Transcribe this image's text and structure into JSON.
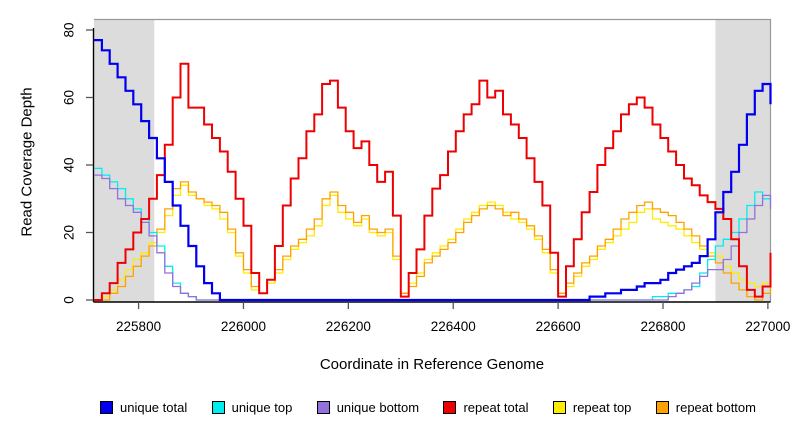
{
  "figure": {
    "x_title": "Coordinate in Reference Genome",
    "y_title": "Read Coverage Depth",
    "background_color": "#ffffff",
    "shaded_region_color": "#dcdcdc",
    "box_color": "#999999",
    "axis_color": "#000000",
    "tick_color": "#555555"
  },
  "legend": {
    "items": [
      {
        "label": "unique total",
        "color": "#0000ee"
      },
      {
        "label": "unique top",
        "color": "#00eeee"
      },
      {
        "label": "unique bottom",
        "color": "#9370db"
      },
      {
        "label": "repeat total",
        "color": "#ee0000"
      },
      {
        "label": "repeat top",
        "color": "#ffec00"
      },
      {
        "label": "repeat bottom",
        "color": "#ffa200"
      }
    ]
  },
  "chart_data": {
    "type": "line",
    "title": "",
    "xlabel": "Coordinate in Reference Genome",
    "ylabel": "Read Coverage Depth",
    "xlim": [
      225715,
      227005
    ],
    "ylim": [
      0,
      80
    ],
    "x_ticks": [
      225800,
      226000,
      226200,
      226400,
      226600,
      226800,
      227000
    ],
    "y_ticks": [
      0,
      20,
      40,
      60,
      80
    ],
    "grid": false,
    "legend_position": "bottom",
    "shaded_regions": [
      {
        "from": 225715,
        "to": 225830
      },
      {
        "from": 226900,
        "to": 227005
      }
    ],
    "x_start": 225715,
    "x_step": 15,
    "draw_order": [
      4,
      5,
      1,
      2,
      3,
      0
    ],
    "series": [
      {
        "name": "unique total",
        "color": "#0000ee",
        "width": 2.2,
        "values": [
          77,
          74,
          70,
          66,
          62,
          58,
          53,
          48,
          42,
          35,
          28,
          22,
          16,
          10,
          5,
          2,
          0,
          0,
          0,
          0,
          0,
          0,
          0,
          0,
          0,
          0,
          0,
          0,
          0,
          0,
          0,
          0,
          0,
          0,
          0,
          0,
          0,
          0,
          0,
          0,
          0,
          0,
          0,
          0,
          0,
          0,
          0,
          0,
          0,
          0,
          0,
          0,
          0,
          0,
          0,
          0,
          0,
          0,
          0,
          0,
          0,
          0,
          0,
          1,
          1,
          2,
          2,
          3,
          3,
          4,
          5,
          5,
          6,
          8,
          9,
          10,
          11,
          13,
          18,
          26,
          32,
          38,
          46,
          55,
          62,
          64,
          58
        ]
      },
      {
        "name": "unique top",
        "color": "#00eeee",
        "width": 1.3,
        "values": [
          39,
          37,
          35,
          33,
          30,
          27,
          24,
          20,
          16,
          10,
          5,
          2,
          1,
          0,
          0,
          0,
          0,
          0,
          0,
          0,
          0,
          0,
          0,
          0,
          0,
          0,
          0,
          0,
          0,
          0,
          0,
          0,
          0,
          0,
          0,
          0,
          0,
          0,
          0,
          0,
          0,
          0,
          0,
          0,
          0,
          0,
          0,
          0,
          0,
          0,
          0,
          0,
          0,
          0,
          0,
          0,
          0,
          0,
          0,
          0,
          0,
          0,
          0,
          0,
          0,
          0,
          0,
          0,
          0,
          0,
          0,
          1,
          1,
          2,
          2,
          3,
          4,
          8,
          12,
          16,
          18,
          20,
          24,
          28,
          32,
          30,
          30
        ]
      },
      {
        "name": "unique bottom",
        "color": "#9370db",
        "width": 1.3,
        "values": [
          37,
          36,
          33,
          30,
          28,
          26,
          23,
          19,
          14,
          8,
          4,
          2,
          1,
          0,
          0,
          0,
          0,
          0,
          0,
          0,
          0,
          0,
          0,
          0,
          0,
          0,
          0,
          0,
          0,
          0,
          0,
          0,
          0,
          0,
          0,
          0,
          0,
          0,
          0,
          0,
          0,
          0,
          0,
          0,
          0,
          0,
          0,
          0,
          0,
          0,
          0,
          0,
          0,
          0,
          0,
          0,
          0,
          0,
          0,
          0,
          0,
          0,
          0,
          0,
          0,
          0,
          0,
          0,
          0,
          0,
          0,
          0,
          0,
          1,
          2,
          3,
          5,
          7,
          9,
          9,
          12,
          16,
          20,
          24,
          28,
          31,
          27
        ]
      },
      {
        "name": "repeat total",
        "color": "#ee0000",
        "width": 2.0,
        "values": [
          0,
          2,
          5,
          11,
          15,
          20,
          24,
          30,
          37,
          46,
          60,
          70,
          57,
          57,
          52,
          48,
          44,
          38,
          30,
          22,
          8,
          2,
          6,
          16,
          28,
          36,
          42,
          50,
          55,
          64,
          65,
          57,
          50,
          45,
          47,
          40,
          35,
          38,
          25,
          1,
          8,
          15,
          25,
          33,
          37,
          44,
          50,
          55,
          58,
          65,
          60,
          62,
          55,
          52,
          48,
          42,
          35,
          28,
          14,
          1,
          10,
          18,
          26,
          32,
          40,
          45,
          50,
          55,
          58,
          60,
          57,
          52,
          48,
          44,
          40,
          36,
          34,
          31,
          29,
          27,
          24,
          18,
          10,
          3,
          1,
          4,
          14
        ]
      },
      {
        "name": "repeat top",
        "color": "#ffec00",
        "width": 1.3,
        "values": [
          0,
          1,
          3,
          6,
          9,
          12,
          14,
          17,
          20,
          25,
          31,
          34,
          31,
          30,
          28,
          27,
          24,
          20,
          13,
          8,
          3,
          2,
          5,
          8,
          12,
          15,
          17,
          19,
          22,
          28,
          31,
          26,
          24,
          22,
          24,
          20,
          19,
          20,
          12,
          2,
          5,
          8,
          12,
          14,
          16,
          18,
          21,
          24,
          26,
          28,
          29,
          28,
          26,
          24,
          23,
          21,
          18,
          14,
          8,
          2,
          4,
          7,
          10,
          12,
          15,
          17,
          19,
          21,
          23,
          26,
          27,
          24,
          23,
          22,
          21,
          19,
          17,
          15,
          14,
          13,
          10,
          8,
          6,
          5,
          4,
          5,
          7
        ]
      },
      {
        "name": "repeat bottom",
        "color": "#ffa200",
        "width": 1.3,
        "values": [
          0,
          0,
          2,
          4,
          7,
          10,
          13,
          16,
          21,
          27,
          33,
          35,
          32,
          30,
          29,
          28,
          26,
          21,
          14,
          9,
          4,
          2,
          6,
          9,
          13,
          16,
          18,
          21,
          24,
          30,
          32,
          28,
          26,
          23,
          25,
          21,
          20,
          21,
          13,
          2,
          4,
          7,
          11,
          13,
          15,
          17,
          20,
          23,
          25,
          27,
          28,
          27,
          25,
          26,
          24,
          22,
          19,
          15,
          9,
          2,
          5,
          8,
          11,
          13,
          16,
          18,
          21,
          24,
          26,
          28,
          29,
          27,
          26,
          25,
          23,
          21,
          19,
          16,
          13,
          11,
          8,
          5,
          3,
          1,
          0,
          2,
          5
        ]
      }
    ]
  }
}
